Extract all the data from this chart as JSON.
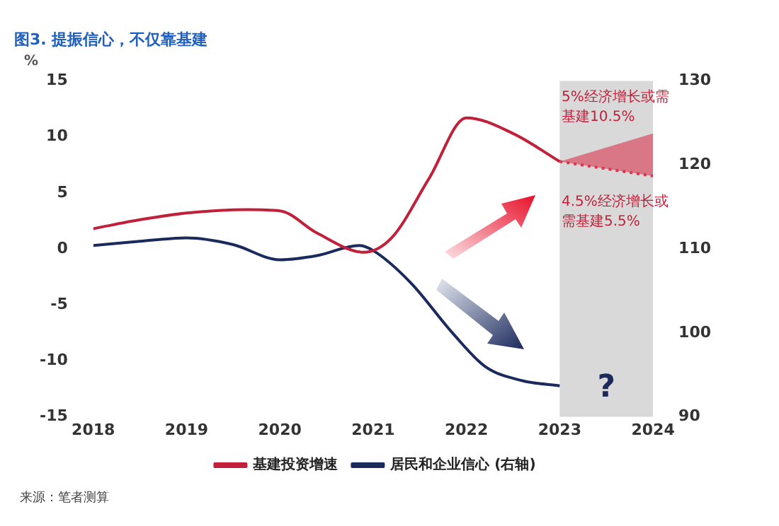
{
  "chart_data": {
    "type": "line",
    "title": "图3. 提振信心，不仅靠基建",
    "ylabel": "%",
    "xlim": [
      2018,
      2024
    ],
    "xticks": [
      2018,
      2019,
      2020,
      2021,
      2022,
      2023,
      2024
    ],
    "ylim": [
      -15,
      15
    ],
    "yticks": [
      -15,
      -10,
      -5,
      0,
      5,
      10,
      15
    ],
    "y2lim": [
      90,
      130
    ],
    "y2ticks": [
      90,
      100,
      110,
      120,
      130
    ],
    "series": [
      {
        "name": "基建投资增速",
        "color": "#c0203a",
        "x": [
          2018,
          2018.5,
          2019,
          2019.65,
          2020,
          2020.4,
          2020.9,
          2021.2,
          2021.6,
          2022,
          2022.5,
          2023
        ],
        "values": [
          1.8,
          2.6,
          3.2,
          3.5,
          3.4,
          1.4,
          -0.3,
          1.0,
          6.3,
          11.7,
          10.3,
          7.8
        ]
      },
      {
        "name": "居民和企业信心 (右轴)",
        "color": "#1b2a5c",
        "axis": "y2",
        "x": [
          2018,
          2018.5,
          2019,
          2019.5,
          2020,
          2020.4,
          2020.85,
          2021,
          2021.4,
          2021.85,
          2022.2,
          2022.6,
          2023
        ],
        "values": [
          110.4,
          110.9,
          111.3,
          110.5,
          108.7,
          109.2,
          110.4,
          109.8,
          106,
          100,
          96,
          94.3,
          93.7
        ]
      },
      {
        "color": "#d9364f",
        "line_style": "dotted",
        "x": [
          2023,
          2024
        ],
        "values": [
          7.8,
          6.5
        ],
        "lower": [
          7.8,
          6.5
        ],
        "upper": [
          7.8,
          10.3
        ]
      }
    ],
    "bands": [
      {
        "axis": "x",
        "from": 2023,
        "to": 2024,
        "color": "#d9d9d9"
      }
    ],
    "annotations": [
      "5%经济增长或需基建10.5%",
      "4.5%经济增长或需基建5.5%",
      "?",
      "来源：笔者测算"
    ],
    "grid": false,
    "legend": "bottom",
    "marker": "none"
  }
}
